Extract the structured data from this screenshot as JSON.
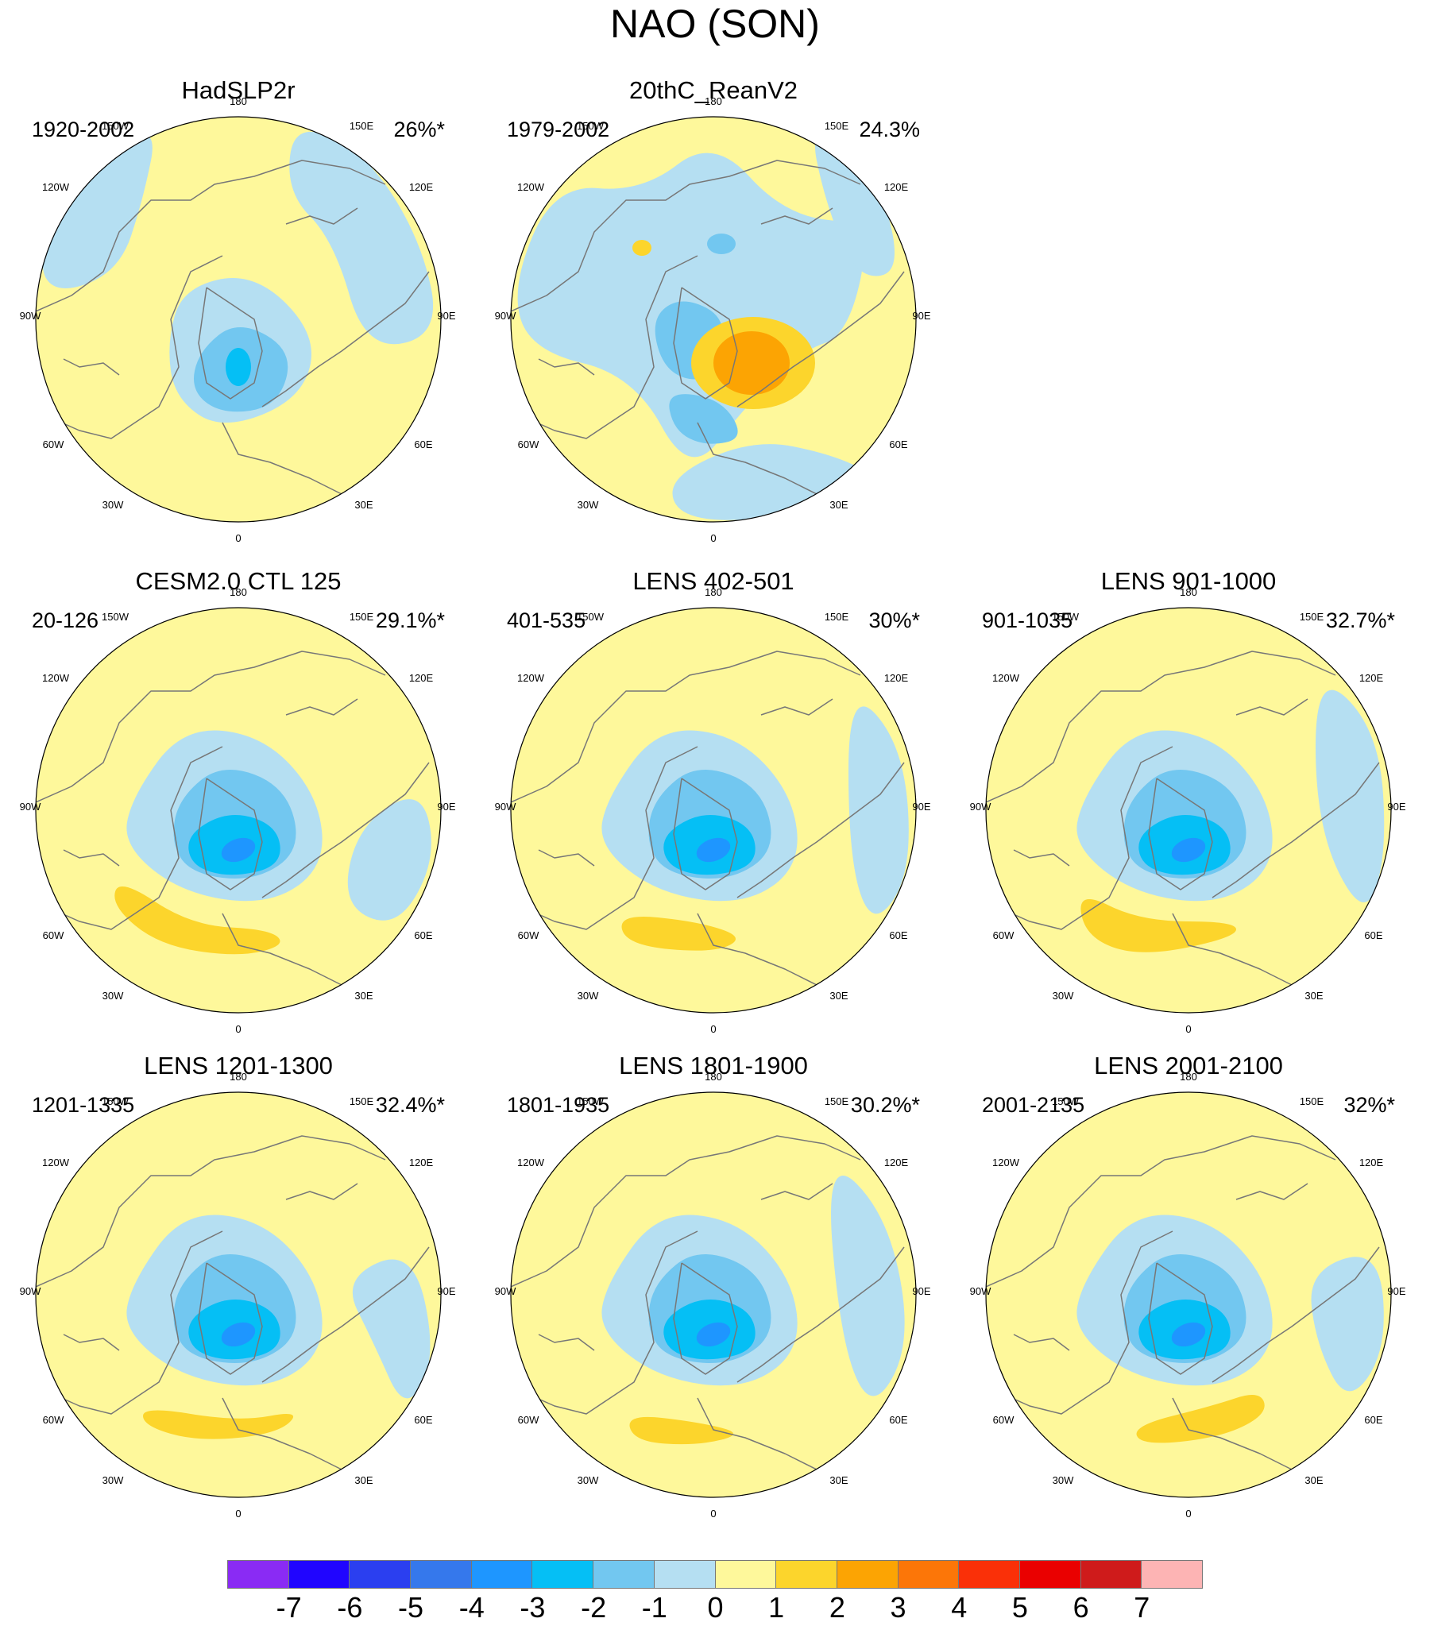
{
  "figure": {
    "title": "NAO (SON)"
  },
  "colors": {
    "neg1": "#b5dff2",
    "neg2": "#72c7f0",
    "neg3": "#05bff5",
    "neg4": "#1e96ff",
    "pos1": "#fef89b",
    "pos2": "#fcd52c",
    "pos3": "#fca403",
    "coast": "#777777",
    "border": "#000000"
  },
  "longitude_labels": [
    "180",
    "150E",
    "120E",
    "90E",
    "60E",
    "30E",
    "0",
    "30W",
    "60W",
    "90W",
    "120W",
    "150W"
  ],
  "panels": [
    {
      "title": "HadSLP2r",
      "period": "1920-2002",
      "percent": "26%*",
      "pattern": "had"
    },
    {
      "title": "20thC_ReanV2",
      "period": "1979-2002",
      "percent": "24.3%",
      "pattern": "rean"
    },
    {
      "title": "CESM2.0 CTL 125",
      "period": "20-126",
      "percent": "29.1%*",
      "pattern": "model",
      "variant": 0
    },
    {
      "title": "LENS 402-501",
      "period": "401-535",
      "percent": "30%*",
      "pattern": "model",
      "variant": 1
    },
    {
      "title": "LENS 901-1000",
      "period": "901-1035",
      "percent": "32.7%*",
      "pattern": "model",
      "variant": 2
    },
    {
      "title": "LENS 1201-1300",
      "period": "1201-1335",
      "percent": "32.4%*",
      "pattern": "model",
      "variant": 3
    },
    {
      "title": "LENS 1801-1900",
      "period": "1801-1935",
      "percent": "30.2%*",
      "pattern": "model",
      "variant": 4
    },
    {
      "title": "LENS 2001-2100",
      "period": "2001-2135",
      "percent": "32%*",
      "pattern": "model",
      "variant": 5
    }
  ],
  "colorbar": {
    "labels": [
      "-7",
      "-6",
      "-5",
      "-4",
      "-3",
      "-2",
      "-1",
      "0",
      "1",
      "2",
      "3",
      "4",
      "5",
      "6",
      "7"
    ],
    "colors": [
      "#8a2bf4",
      "#2005ff",
      "#2b3ff0",
      "#3578ec",
      "#1e96ff",
      "#05bff5",
      "#72c7f0",
      "#b5dff2",
      "#fef89b",
      "#fcd52c",
      "#fca403",
      "#fc7608",
      "#fa3008",
      "#ea0000",
      "#cf1b1b",
      "#fdb4b4"
    ]
  }
}
